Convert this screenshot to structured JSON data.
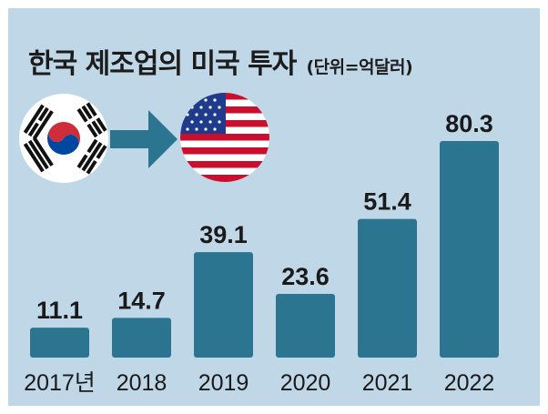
{
  "title": "한국 제조업의 미국 투자",
  "unit_note": "(단위=억달러)",
  "colors": {
    "background": "#bfd7e6",
    "bar": "#2c7590",
    "arrow": "#2c7590"
  },
  "icons": [
    "south-korea-flag-icon",
    "arrow-right-icon",
    "usa-flag-icon"
  ],
  "chart_data": {
    "type": "bar",
    "categories": [
      "2017년",
      "2018",
      "2019",
      "2020",
      "2021",
      "2022"
    ],
    "values": [
      11.1,
      14.7,
      39.1,
      23.6,
      51.4,
      80.3
    ],
    "value_labels": [
      "11.1",
      "14.7",
      "39.1",
      "23.6",
      "51.4",
      "80.3"
    ],
    "title": "한국 제조업의 미국 투자",
    "unit": "(단위=억달러)",
    "xlabel": "",
    "ylabel": "",
    "ylim": [
      0,
      80.3
    ],
    "grid": false,
    "legend": "none"
  }
}
